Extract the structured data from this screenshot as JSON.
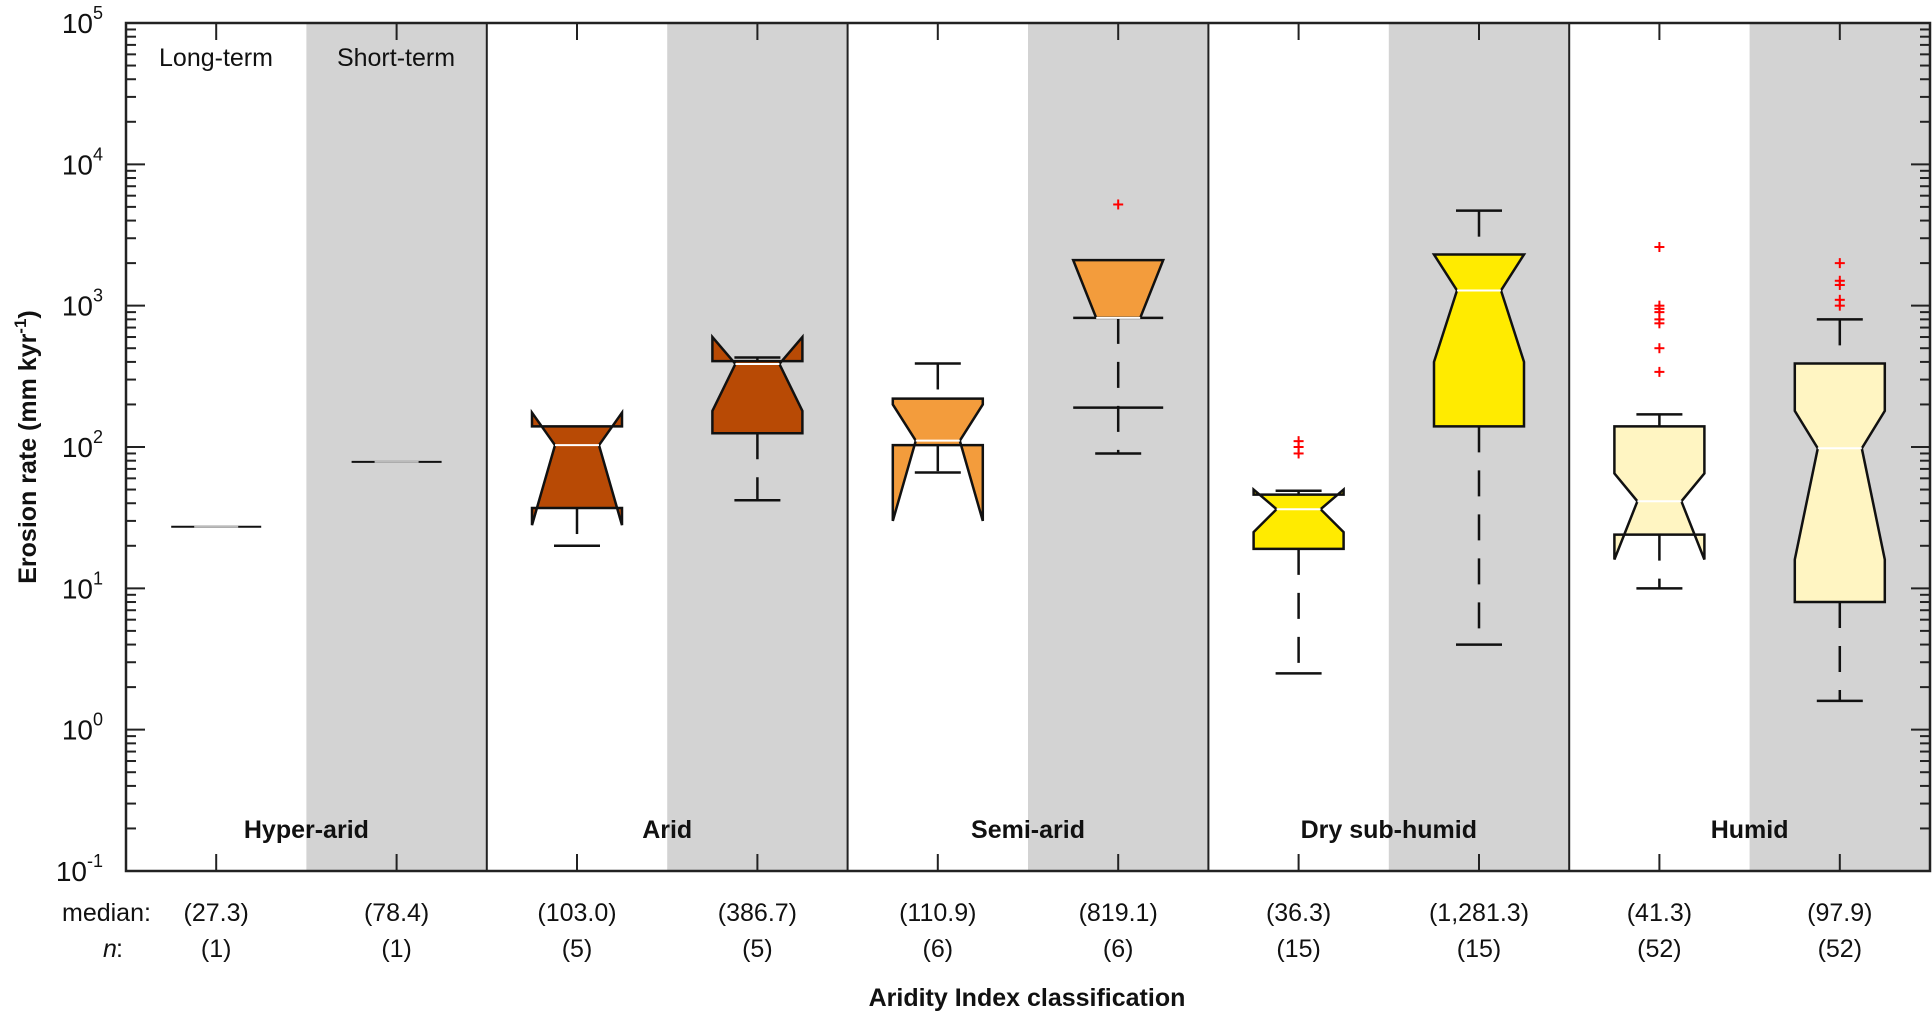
{
  "chart_data": {
    "type": "box",
    "title": "",
    "xlabel": "Aridity Index classification",
    "ylabel": "Erosion rate (mm  kyr",
    "ylabel_superscript": "-1",
    "ylabel_suffix": ")",
    "yscale": "log",
    "ylim": [
      0.1,
      100000
    ],
    "yticks": [
      {
        "base": "10",
        "exp": "5"
      },
      {
        "base": "10",
        "exp": "4"
      },
      {
        "base": "10",
        "exp": "3"
      },
      {
        "base": "10",
        "exp": "2"
      },
      {
        "base": "10",
        "exp": "1"
      },
      {
        "base": "10",
        "exp": "0"
      },
      {
        "base": "10",
        "exp": "-1"
      }
    ],
    "term_labels": [
      "Long-term",
      "Short-term"
    ],
    "row_labels": {
      "median": "median:",
      "n": "n"
    },
    "colors": {
      "shade": "#d3d3d3",
      "outlier": "#ff0000",
      "median_line": "#ffffff",
      "Hyper-arid": "#ffffff",
      "Arid": "#b84a05",
      "Semi-arid": "#f39c3c",
      "Dry sub-humid": "#ffeb00",
      "Humid": "#fff5c2"
    },
    "categories": [
      "Hyper-arid",
      "Arid",
      "Semi-arid",
      "Dry sub-humid",
      "Humid"
    ],
    "boxes": [
      {
        "category": "Hyper-arid",
        "term": "Long-term",
        "median": 27.3,
        "median_label": "(27.3)",
        "n_label": "(1)",
        "q1": 27.3,
        "q3": 27.3,
        "notch_lo": 27.3,
        "notch_hi": 27.3,
        "whisker_lo": 27.3,
        "whisker_hi": 27.3,
        "outliers": []
      },
      {
        "category": "Hyper-arid",
        "term": "Short-term",
        "median": 78.4,
        "median_label": "(78.4)",
        "n_label": "(1)",
        "q1": 78.4,
        "q3": 78.4,
        "notch_lo": 78.4,
        "notch_hi": 78.4,
        "whisker_lo": 78.4,
        "whisker_hi": 78.4,
        "outliers": []
      },
      {
        "category": "Arid",
        "term": "Long-term",
        "median": 103.0,
        "median_label": "(103.0)",
        "n_label": "(5)",
        "q1": 37,
        "q3": 140,
        "notch_lo": 28,
        "notch_hi": 175,
        "whisker_lo": 20,
        "whisker_hi": 140,
        "outliers": []
      },
      {
        "category": "Arid",
        "term": "Short-term",
        "median": 386.7,
        "median_label": "(386.7)",
        "n_label": "(5)",
        "q1": 125,
        "q3": 405,
        "notch_lo": 180,
        "notch_hi": 600,
        "whisker_lo": 42,
        "whisker_hi": 430,
        "outliers": []
      },
      {
        "category": "Semi-arid",
        "term": "Long-term",
        "median": 110.9,
        "median_label": "(110.9)",
        "n_label": "(6)",
        "q1": 103,
        "q3": 220,
        "notch_lo": 30,
        "notch_hi": 200,
        "whisker_lo": 66,
        "whisker_hi": 390,
        "outliers": []
      },
      {
        "category": "Semi-arid",
        "term": "Short-term",
        "median": 819.1,
        "median_label": "(819.1)",
        "n_label": "(6)",
        "q1": 819.1,
        "q3": 2100,
        "notch_lo": 819.1,
        "notch_hi": 2100,
        "whisker_lo": 90,
        "whisker_hi": 2100,
        "extra_line": 190,
        "outliers": [
          5200
        ]
      },
      {
        "category": "Dry sub-humid",
        "term": "Long-term",
        "median": 36.3,
        "median_label": "(36.3)",
        "n_label": "(15)",
        "q1": 19,
        "q3": 46,
        "notch_lo": 25,
        "notch_hi": 50,
        "whisker_lo": 2.5,
        "whisker_hi": 49,
        "outliers": [
          110,
          100,
          90
        ]
      },
      {
        "category": "Dry sub-humid",
        "term": "Short-term",
        "median": 1281.3,
        "median_label": "(1,281.3)",
        "n_label": "(15)",
        "q1": 140,
        "q3": 2300,
        "notch_lo": 400,
        "notch_hi": 2300,
        "whisker_lo": 4,
        "whisker_hi": 4700,
        "outliers": []
      },
      {
        "category": "Humid",
        "term": "Long-term",
        "median": 41.3,
        "median_label": "(41.3)",
        "n_label": "(52)",
        "q1": 24,
        "q3": 140,
        "notch_lo": 16,
        "notch_hi": 65,
        "whisker_lo": 10,
        "whisker_hi": 170,
        "outliers": [
          2600,
          1000,
          950,
          900,
          800,
          750,
          500,
          340
        ]
      },
      {
        "category": "Humid",
        "term": "Short-term",
        "median": 97.9,
        "median_label": "(97.9)",
        "n_label": "(52)",
        "q1": 8,
        "q3": 390,
        "notch_lo": 16,
        "notch_hi": 180,
        "whisker_lo": 1.6,
        "whisker_hi": 800,
        "outliers": [
          2000,
          1500,
          1400,
          1100,
          1000
        ]
      }
    ],
    "grid": false,
    "legend": "none"
  }
}
